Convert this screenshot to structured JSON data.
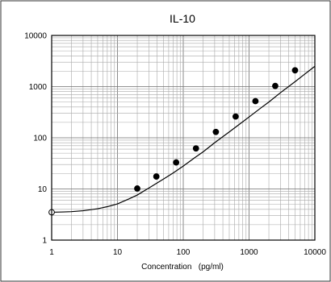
{
  "chart_data": {
    "type": "scatter",
    "title": "IL-10",
    "xlabel": "Concentration   (pg/ml)",
    "ylabel": "",
    "x_scale": "log",
    "y_scale": "log",
    "xlim": [
      1,
      10000
    ],
    "ylim": [
      1,
      10000
    ],
    "grid": true,
    "x_ticks": [
      "1",
      "10",
      "100",
      "1000",
      "10000"
    ],
    "y_ticks": [
      "1",
      "10",
      "100",
      "1000",
      "10000"
    ],
    "series": [
      {
        "points": [
          {
            "x": 1,
            "y": 3.5,
            "marker": "open-circle"
          },
          {
            "x": 20,
            "y": 10.2,
            "marker": "filled-circle"
          },
          {
            "x": 39,
            "y": 17.5,
            "marker": "filled-circle"
          },
          {
            "x": 78,
            "y": 33,
            "marker": "filled-circle"
          },
          {
            "x": 156,
            "y": 62,
            "marker": "filled-circle"
          },
          {
            "x": 313,
            "y": 130,
            "marker": "filled-circle"
          },
          {
            "x": 625,
            "y": 260,
            "marker": "filled-circle"
          },
          {
            "x": 1250,
            "y": 520,
            "marker": "filled-circle"
          },
          {
            "x": 2500,
            "y": 1030,
            "marker": "filled-circle"
          },
          {
            "x": 5000,
            "y": 2080,
            "marker": "filled-circle"
          }
        ],
        "fit_curve": {
          "x": [
            1,
            1.5,
            2,
            3,
            5,
            7,
            10,
            15,
            20,
            30,
            50,
            70,
            100,
            150,
            200,
            300,
            500,
            700,
            1000,
            1500,
            2000,
            3000,
            5000,
            7000,
            10000
          ],
          "y": [
            3.5,
            3.55,
            3.6,
            3.75,
            4.1,
            4.5,
            5.1,
            6.4,
            7.6,
            10.4,
            15.6,
            20.5,
            28,
            41,
            53,
            80,
            130,
            180,
            255,
            380,
            500,
            760,
            1250,
            1750,
            2500
          ]
        }
      }
    ]
  },
  "colors": {
    "marker": "#000000",
    "curve": "#000000",
    "grid": "#a8a8a8",
    "background": "#ffffff"
  }
}
